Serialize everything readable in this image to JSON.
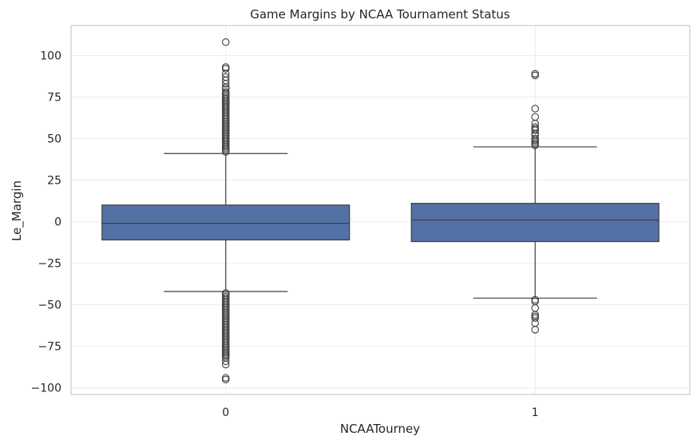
{
  "chart_data": {
    "type": "box",
    "title": "Game Margins by NCAA Tournament Status",
    "xlabel": "NCAATourney",
    "ylabel": "Le_Margin",
    "categories": [
      "0",
      "1"
    ],
    "ylim": [
      -104,
      118
    ],
    "yticks": [
      -100,
      -75,
      -50,
      -25,
      0,
      25,
      50,
      75,
      100
    ],
    "ytick_labels": [
      "−100",
      "−75",
      "−50",
      "−25",
      "0",
      "25",
      "50",
      "75",
      "100"
    ],
    "grid": true,
    "box_color": "#5471a6",
    "line_color": "#3f3f3f",
    "boxes": [
      {
        "category": "0",
        "q1": -11,
        "median": -1,
        "q3": 10,
        "whisker_low": -42,
        "whisker_high": 41,
        "outliers_high": [
          108,
          93,
          92,
          89,
          87,
          85,
          83,
          81,
          80,
          78,
          77,
          76,
          75,
          74,
          73,
          72,
          71,
          70,
          69,
          68,
          67,
          66,
          65,
          64,
          63,
          62,
          61,
          60,
          59,
          58,
          57,
          56,
          55,
          54,
          53,
          52,
          51,
          50,
          49,
          48,
          47,
          46,
          45,
          44,
          43,
          42
        ],
        "outliers_low": [
          -43,
          -44,
          -45,
          -46,
          -47,
          -48,
          -49,
          -50,
          -51,
          -52,
          -53,
          -54,
          -55,
          -56,
          -57,
          -58,
          -59,
          -60,
          -61,
          -62,
          -63,
          -64,
          -65,
          -66,
          -67,
          -68,
          -69,
          -70,
          -71,
          -72,
          -73,
          -74,
          -75,
          -76,
          -77,
          -78,
          -79,
          -80,
          -81,
          -82,
          -84,
          -86,
          -94,
          -95
        ]
      },
      {
        "category": "1",
        "q1": -12,
        "median": 1,
        "q3": 11,
        "whisker_low": -46,
        "whisker_high": 45,
        "outliers_high": [
          89,
          88,
          68,
          63,
          59,
          57,
          56,
          55,
          53,
          52,
          50,
          49,
          48,
          47,
          46
        ],
        "outliers_low": [
          -47,
          -48,
          -52,
          -56,
          -57,
          -58,
          -61,
          -65
        ]
      }
    ]
  }
}
